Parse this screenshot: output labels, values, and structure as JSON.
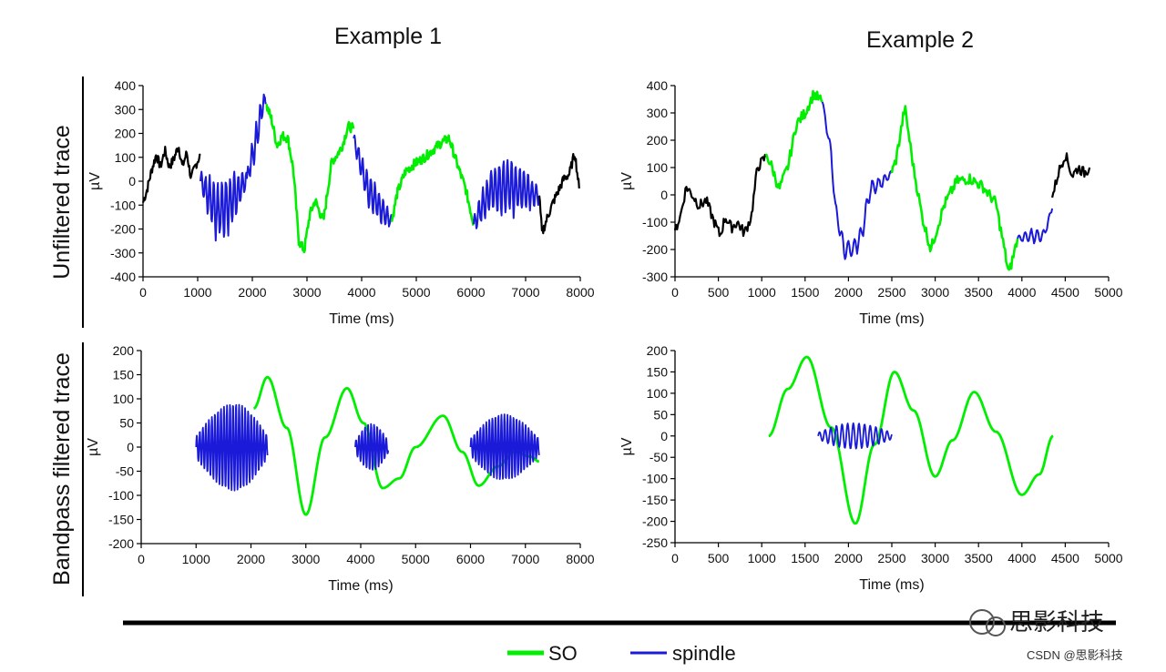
{
  "column_titles": [
    "Example 1",
    "Example 2"
  ],
  "row_titles": [
    "Unfiltered trace",
    "Bandpass filtered trace"
  ],
  "legend": [
    {
      "label": "SO",
      "color": "#00ee00"
    },
    {
      "label": "spindle",
      "color": "#1a1ad8"
    }
  ],
  "colors": {
    "so": "#00ee00",
    "spindle": "#1a1ad8",
    "background": "#000000"
  },
  "watermark": {
    "logo_text": "思影科技",
    "credit": "CSDN @思影科技"
  },
  "chart_data": [
    {
      "id": "ex1-unfiltered",
      "type": "line",
      "title": "",
      "xlabel": "Time (ms)",
      "ylabel": "µV",
      "xlim": [
        0,
        8000
      ],
      "ylim": [
        -400,
        400
      ],
      "xticks": [
        0,
        1000,
        2000,
        3000,
        4000,
        5000,
        6000,
        7000,
        8000
      ],
      "yticks": [
        400,
        300,
        200,
        100,
        0,
        -100,
        -200,
        -300,
        -400
      ],
      "series": [
        {
          "name": "background",
          "kind": "bg",
          "x": [
            0,
            80,
            150,
            240,
            320,
            400,
            480,
            560,
            650,
            720,
            800,
            880,
            950,
            1050
          ],
          "y": [
            -90,
            -30,
            40,
            110,
            60,
            130,
            60,
            90,
            150,
            60,
            120,
            10,
            60,
            110
          ]
        },
        {
          "name": "spindle",
          "kind": "spindle",
          "x0": 1050,
          "x1": 1900,
          "base": [
            [
              1050,
              0
            ],
            [
              1350,
              -130
            ],
            [
              1600,
              -90
            ],
            [
              1900,
              10
            ]
          ],
          "amp": 120,
          "period": 75
        },
        {
          "name": "spindle",
          "kind": "spindle",
          "x0": 1900,
          "x1": 2250,
          "base": [
            [
              1900,
              10
            ],
            [
              2050,
              150
            ],
            [
              2200,
              330
            ]
          ],
          "amp": 70,
          "period": 75
        },
        {
          "name": "SO",
          "kind": "so",
          "x": [
            2250,
            2350,
            2450,
            2550,
            2650,
            2750,
            2850,
            2950,
            3050,
            3150,
            3300,
            3450,
            3550,
            3650,
            3750,
            3850
          ],
          "y": [
            320,
            260,
            150,
            190,
            180,
            50,
            -250,
            -290,
            -140,
            -80,
            -170,
            80,
            110,
            150,
            230,
            220
          ]
        },
        {
          "name": "spindle",
          "kind": "spindle",
          "x0": 3850,
          "x1": 4550,
          "base": [
            [
              3850,
              180
            ],
            [
              4100,
              -30
            ],
            [
              4400,
              -130
            ],
            [
              4550,
              -170
            ]
          ],
          "amp": 70,
          "period": 75
        },
        {
          "name": "SO",
          "kind": "so",
          "x": [
            4550,
            4650,
            4800,
            4950,
            5150,
            5300,
            5450,
            5600,
            5750,
            5900,
            6050
          ],
          "y": [
            -170,
            -50,
            40,
            70,
            100,
            130,
            160,
            180,
            70,
            -30,
            -180
          ]
        },
        {
          "name": "spindle",
          "kind": "spindle",
          "x0": 6050,
          "x1": 7250,
          "base": [
            [
              6050,
              -180
            ],
            [
              6350,
              -40
            ],
            [
              6650,
              -20
            ],
            [
              6950,
              -40
            ],
            [
              7250,
              -60
            ]
          ],
          "amp": 110,
          "period": 75
        },
        {
          "name": "background",
          "kind": "bg",
          "x": [
            7250,
            7300,
            7400,
            7500,
            7600,
            7700,
            7800,
            7900,
            7980
          ],
          "y": [
            -60,
            -220,
            -150,
            -90,
            -40,
            10,
            30,
            120,
            -30
          ]
        }
      ]
    },
    {
      "id": "ex1-filtered",
      "type": "line",
      "title": "",
      "xlabel": "Time (ms)",
      "ylabel": "µV",
      "xlim": [
        0,
        8000
      ],
      "ylim": [
        -200,
        200
      ],
      "xticks": [
        0,
        1000,
        2000,
        3000,
        4000,
        5000,
        6000,
        7000,
        8000
      ],
      "yticks": [
        200,
        150,
        100,
        50,
        0,
        -50,
        -100,
        -150,
        -200
      ],
      "series": [
        {
          "name": "SO",
          "kind": "smooth",
          "x": [
            2050,
            2300,
            2650,
            3000,
            3350,
            3750,
            4050,
            4400,
            4700,
            5000,
            5500,
            5850,
            6150,
            6500,
            6800,
            7100,
            7250
          ],
          "y": [
            80,
            145,
            40,
            -140,
            20,
            122,
            50,
            -85,
            -65,
            0,
            65,
            -10,
            -80,
            -40,
            -10,
            -20,
            -30
          ]
        },
        {
          "name": "spindle",
          "kind": "burst",
          "x0": 1000,
          "x1": 2300,
          "peak": 1700,
          "amp": 90,
          "period": 55
        },
        {
          "name": "spindle",
          "kind": "burst",
          "x0": 3900,
          "x1": 4500,
          "peak": 4200,
          "amp": 48,
          "period": 55
        },
        {
          "name": "spindle",
          "kind": "burst",
          "x0": 6000,
          "x1": 7250,
          "peak": 6600,
          "amp": 68,
          "period": 55
        }
      ]
    },
    {
      "id": "ex2-unfiltered",
      "type": "line",
      "title": "",
      "xlabel": "Time (ms)",
      "ylabel": "µV",
      "xlim": [
        0,
        5000
      ],
      "ylim": [
        -300,
        400
      ],
      "xticks": [
        0,
        500,
        1000,
        1500,
        2000,
        2500,
        3000,
        3500,
        4000,
        4500,
        5000
      ],
      "yticks": [
        400,
        300,
        200,
        100,
        0,
        -100,
        -200,
        -300
      ],
      "series": [
        {
          "name": "background",
          "kind": "bg",
          "x": [
            0,
            60,
            130,
            200,
            280,
            360,
            440,
            520,
            580,
            650,
            720,
            800,
            880,
            950,
            1050
          ],
          "y": [
            -130,
            -80,
            30,
            0,
            -40,
            -20,
            -90,
            -150,
            -80,
            -120,
            -100,
            -140,
            -80,
            100,
            140
          ]
        },
        {
          "name": "SO",
          "kind": "so",
          "x": [
            1050,
            1120,
            1200,
            1300,
            1400,
            1500,
            1600,
            1700
          ],
          "y": [
            150,
            100,
            20,
            100,
            260,
            300,
            370,
            340
          ]
        },
        {
          "name": "spindle",
          "kind": "spindle",
          "x0": 1700,
          "x1": 2500,
          "base": [
            [
              1700,
              340
            ],
            [
              1800,
              150
            ],
            [
              1850,
              -50
            ],
            [
              1950,
              -200
            ],
            [
              2050,
              -200
            ],
            [
              2150,
              -150
            ],
            [
              2250,
              20
            ],
            [
              2400,
              50
            ],
            [
              2500,
              80
            ]
          ],
          "amp": 35,
          "period": 70
        },
        {
          "name": "SO",
          "kind": "so",
          "x": [
            2500,
            2550,
            2650,
            2750,
            2850,
            2950,
            3100,
            3250,
            3400,
            3550,
            3700,
            3850,
            3950
          ],
          "y": [
            80,
            130,
            320,
            100,
            -80,
            -200,
            -40,
            50,
            60,
            30,
            -30,
            -290,
            -160
          ]
        },
        {
          "name": "spindle",
          "kind": "spindle",
          "x0": 3950,
          "x1": 4350,
          "base": [
            [
              3950,
              -160
            ],
            [
              4100,
              -150
            ],
            [
              4250,
              -150
            ],
            [
              4350,
              -50
            ]
          ],
          "amp": 25,
          "period": 70
        },
        {
          "name": "background",
          "kind": "bg",
          "x": [
            4350,
            4420,
            4500,
            4580,
            4650,
            4720,
            4780
          ],
          "y": [
            -10,
            80,
            150,
            70,
            100,
            80,
            100
          ]
        }
      ]
    },
    {
      "id": "ex2-filtered",
      "type": "line",
      "title": "",
      "xlabel": "Time (ms)",
      "ylabel": "µV",
      "xlim": [
        0,
        5000
      ],
      "ylim": [
        -250,
        200
      ],
      "xticks": [
        0,
        500,
        1000,
        1500,
        2000,
        2500,
        3000,
        3500,
        4000,
        4500,
        5000
      ],
      "yticks": [
        200,
        150,
        100,
        50,
        0,
        -50,
        -100,
        -150,
        -200,
        -250
      ],
      "series": [
        {
          "name": "SO",
          "kind": "smooth",
          "x": [
            1080,
            1300,
            1520,
            1800,
            2080,
            2300,
            2530,
            2750,
            3000,
            3200,
            3450,
            3700,
            4000,
            4200,
            4360
          ],
          "y": [
            0,
            110,
            185,
            20,
            -205,
            -20,
            150,
            60,
            -95,
            -10,
            103,
            10,
            -138,
            -90,
            0
          ]
        },
        {
          "name": "spindle",
          "kind": "burst",
          "x0": 1650,
          "x1": 2500,
          "peak": 2050,
          "amp": 30,
          "period": 65
        }
      ]
    }
  ]
}
